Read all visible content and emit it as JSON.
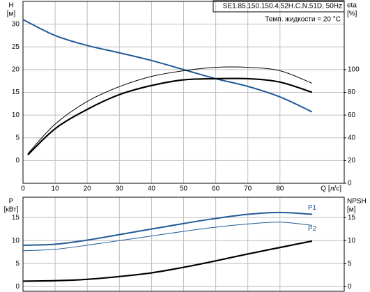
{
  "chart_data": [
    {
      "type": "line",
      "ylabel": "H",
      "yunit": "[м]",
      "y2label": "eta",
      "y2unit": "[%]",
      "xlabel": "Q [л/с]",
      "annotations": [
        "SE1.85.150.150.4.52H.C.N.51D, 50Hz",
        "Темп. жидкости = 20 °C"
      ],
      "xlim": [
        0,
        100
      ],
      "xticks": [
        0,
        10,
        20,
        30,
        40,
        50,
        60,
        70,
        80
      ],
      "ylim": [
        -5,
        35
      ],
      "yticks": [
        0,
        5,
        10,
        15,
        20,
        25,
        30
      ],
      "y2lim": [
        0,
        160
      ],
      "y2ticks": [
        0,
        20,
        40,
        60,
        80,
        100
      ],
      "grid": true,
      "series": [
        {
          "color": "#1f5a96",
          "width": 2,
          "x": [
            0,
            10,
            20,
            30,
            40,
            50,
            60,
            70,
            80,
            90
          ],
          "values": [
            31,
            27.5,
            25.3,
            23.7,
            22,
            20,
            18,
            16.3,
            14,
            10.7
          ]
        },
        {
          "color": "#000000",
          "width": 1,
          "axis": "y2",
          "x": [
            1.5,
            10,
            20,
            30,
            40,
            50,
            60,
            70,
            80,
            90
          ],
          "values": [
            26,
            52,
            72,
            85,
            94,
            99,
            102,
            102,
            99,
            88
          ]
        },
        {
          "color": "#000000",
          "width": 2.2,
          "axis": "y2",
          "x": [
            1.5,
            10,
            20,
            30,
            40,
            50,
            60,
            70,
            80,
            90
          ],
          "values": [
            25,
            48,
            65,
            78,
            86,
            91,
            92,
            92,
            89,
            80
          ]
        }
      ]
    },
    {
      "type": "line",
      "ylabel": "P",
      "yunit": "[кВт]",
      "y2label": "NPSH",
      "y2unit": "[м]",
      "xlim": [
        0,
        100
      ],
      "xticks": [
        0,
        10,
        20,
        30,
        40,
        50,
        60,
        70,
        80
      ],
      "ylim": [
        -1,
        19.4
      ],
      "yticks": [
        0,
        5,
        10,
        15
      ],
      "y2lim": [
        -1,
        19.4
      ],
      "y2ticks": [
        0,
        5,
        10,
        15
      ],
      "grid": true,
      "series": [
        {
          "name": "P1",
          "color": "#1f5a96",
          "width": 2,
          "x": [
            0,
            10,
            20,
            30,
            40,
            50,
            60,
            70,
            80,
            90
          ],
          "values": [
            9,
            9.2,
            10.1,
            11.3,
            12.5,
            13.7,
            14.8,
            15.7,
            16.1,
            15.7
          ]
        },
        {
          "name": "P2",
          "color": "#1f5a96",
          "width": 1,
          "x": [
            0,
            10,
            20,
            30,
            40,
            50,
            60,
            70,
            80,
            90
          ],
          "values": [
            7.8,
            8.1,
            9,
            10,
            11,
            12,
            12.9,
            13.6,
            14,
            13.3
          ]
        },
        {
          "color": "#000000",
          "width": 2.2,
          "axis": "y2",
          "x": [
            0,
            10,
            20,
            30,
            40,
            50,
            60,
            70,
            80,
            90
          ],
          "values": [
            1.2,
            1.3,
            1.6,
            2.2,
            3,
            4.2,
            5.6,
            7.1,
            8.5,
            9.9
          ]
        }
      ]
    }
  ]
}
